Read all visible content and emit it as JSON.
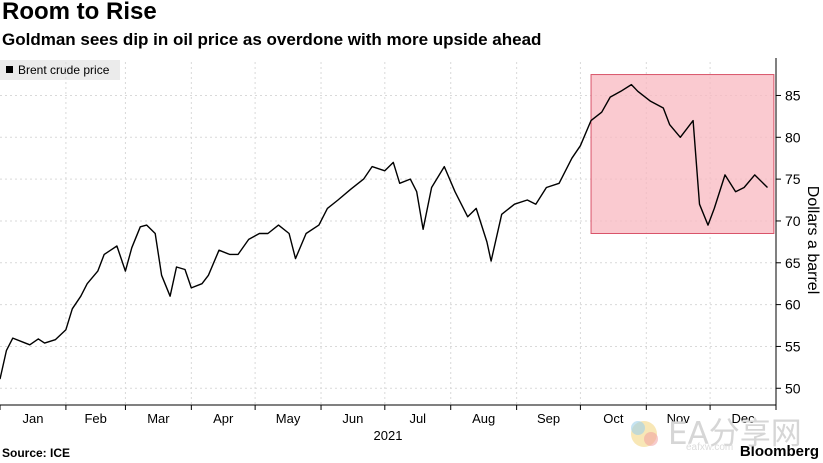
{
  "title": "Room to Rise",
  "subtitle": "Goldman sees dip in oil price as overdone with more upside ahead",
  "source": "Source: ICE",
  "brand": "Bloomberg",
  "watermark": {
    "text": "EA分享网",
    "sub": "eafxw.com"
  },
  "colors": {
    "line": "#000000",
    "highlight_fill": "#f8b8c0",
    "highlight_stroke": "#d9546a",
    "grid": "#d9d9d9"
  },
  "chart_data": {
    "type": "line",
    "title": "Room to Rise",
    "subtitle": "Goldman sees dip in oil price as overdone with more upside ahead",
    "ylabel": "Dollars a barrel",
    "xlabel": "2021",
    "year": "2021",
    "ylim": [
      48,
      89
    ],
    "yticks": [
      50,
      55,
      60,
      65,
      70,
      75,
      80,
      85
    ],
    "axis_position": "right",
    "months": [
      "Jan",
      "Feb",
      "Mar",
      "Apr",
      "May",
      "Jun",
      "Jul",
      "Aug",
      "Sep",
      "Oct",
      "Nov",
      "Dec"
    ],
    "grid": true,
    "legend": {
      "position": "top-left",
      "entries": [
        "Brent crude price"
      ]
    },
    "highlight": {
      "x_start": "2021-10-06",
      "x_end": "2021-12-31",
      "y_start": 68.5,
      "y_end": 87.5
    },
    "series": [
      {
        "name": "Brent crude price",
        "x": [
          "2021-01-01",
          "2021-01-04",
          "2021-01-07",
          "2021-01-12",
          "2021-01-15",
          "2021-01-19",
          "2021-01-22",
          "2021-01-27",
          "2021-02-01",
          "2021-02-04",
          "2021-02-08",
          "2021-02-11",
          "2021-02-16",
          "2021-02-19",
          "2021-02-22",
          "2021-02-25",
          "2021-03-01",
          "2021-03-04",
          "2021-03-08",
          "2021-03-11",
          "2021-03-15",
          "2021-03-18",
          "2021-03-22",
          "2021-03-25",
          "2021-03-29",
          "2021-04-01",
          "2021-04-06",
          "2021-04-09",
          "2021-04-14",
          "2021-04-19",
          "2021-04-23",
          "2021-04-28",
          "2021-05-03",
          "2021-05-07",
          "2021-05-12",
          "2021-05-17",
          "2021-05-20",
          "2021-05-25",
          "2021-05-31",
          "2021-06-04",
          "2021-06-09",
          "2021-06-15",
          "2021-06-21",
          "2021-06-25",
          "2021-07-01",
          "2021-07-05",
          "2021-07-08",
          "2021-07-13",
          "2021-07-16",
          "2021-07-19",
          "2021-07-23",
          "2021-07-29",
          "2021-08-03",
          "2021-08-09",
          "2021-08-13",
          "2021-08-18",
          "2021-08-20",
          "2021-08-25",
          "2021-08-31",
          "2021-09-06",
          "2021-09-10",
          "2021-09-15",
          "2021-09-21",
          "2021-09-27",
          "2021-10-01",
          "2021-10-06",
          "2021-10-11",
          "2021-10-15",
          "2021-10-20",
          "2021-10-25",
          "2021-10-28",
          "2021-11-03",
          "2021-11-09",
          "2021-11-12",
          "2021-11-17",
          "2021-11-23",
          "2021-11-26",
          "2021-11-30",
          "2021-12-03",
          "2021-12-08",
          "2021-12-13",
          "2021-12-17",
          "2021-12-22",
          "2021-12-28"
        ],
        "values": [
          51.1,
          54.5,
          56.0,
          55.5,
          55.2,
          55.9,
          55.4,
          55.8,
          57.0,
          59.5,
          61.0,
          62.5,
          64.0,
          66.0,
          66.5,
          67.0,
          64.0,
          66.8,
          69.3,
          69.5,
          68.5,
          63.5,
          61.0,
          64.5,
          64.2,
          62.0,
          62.5,
          63.5,
          66.5,
          66.0,
          66.0,
          67.8,
          68.5,
          68.5,
          69.5,
          68.5,
          65.5,
          68.5,
          69.5,
          71.5,
          72.5,
          73.8,
          75.0,
          76.5,
          76.0,
          77.0,
          74.5,
          75.0,
          73.5,
          69.0,
          74.0,
          76.5,
          73.5,
          70.5,
          71.5,
          67.5,
          65.2,
          70.8,
          72.0,
          72.5,
          72.0,
          74.0,
          74.5,
          77.5,
          79.0,
          82.0,
          83.0,
          84.8,
          85.5,
          86.3,
          85.5,
          84.3,
          83.5,
          81.5,
          80.0,
          82.0,
          72.0,
          69.5,
          71.5,
          75.5,
          73.5,
          74.0,
          75.5,
          74.0
        ]
      }
    ]
  }
}
